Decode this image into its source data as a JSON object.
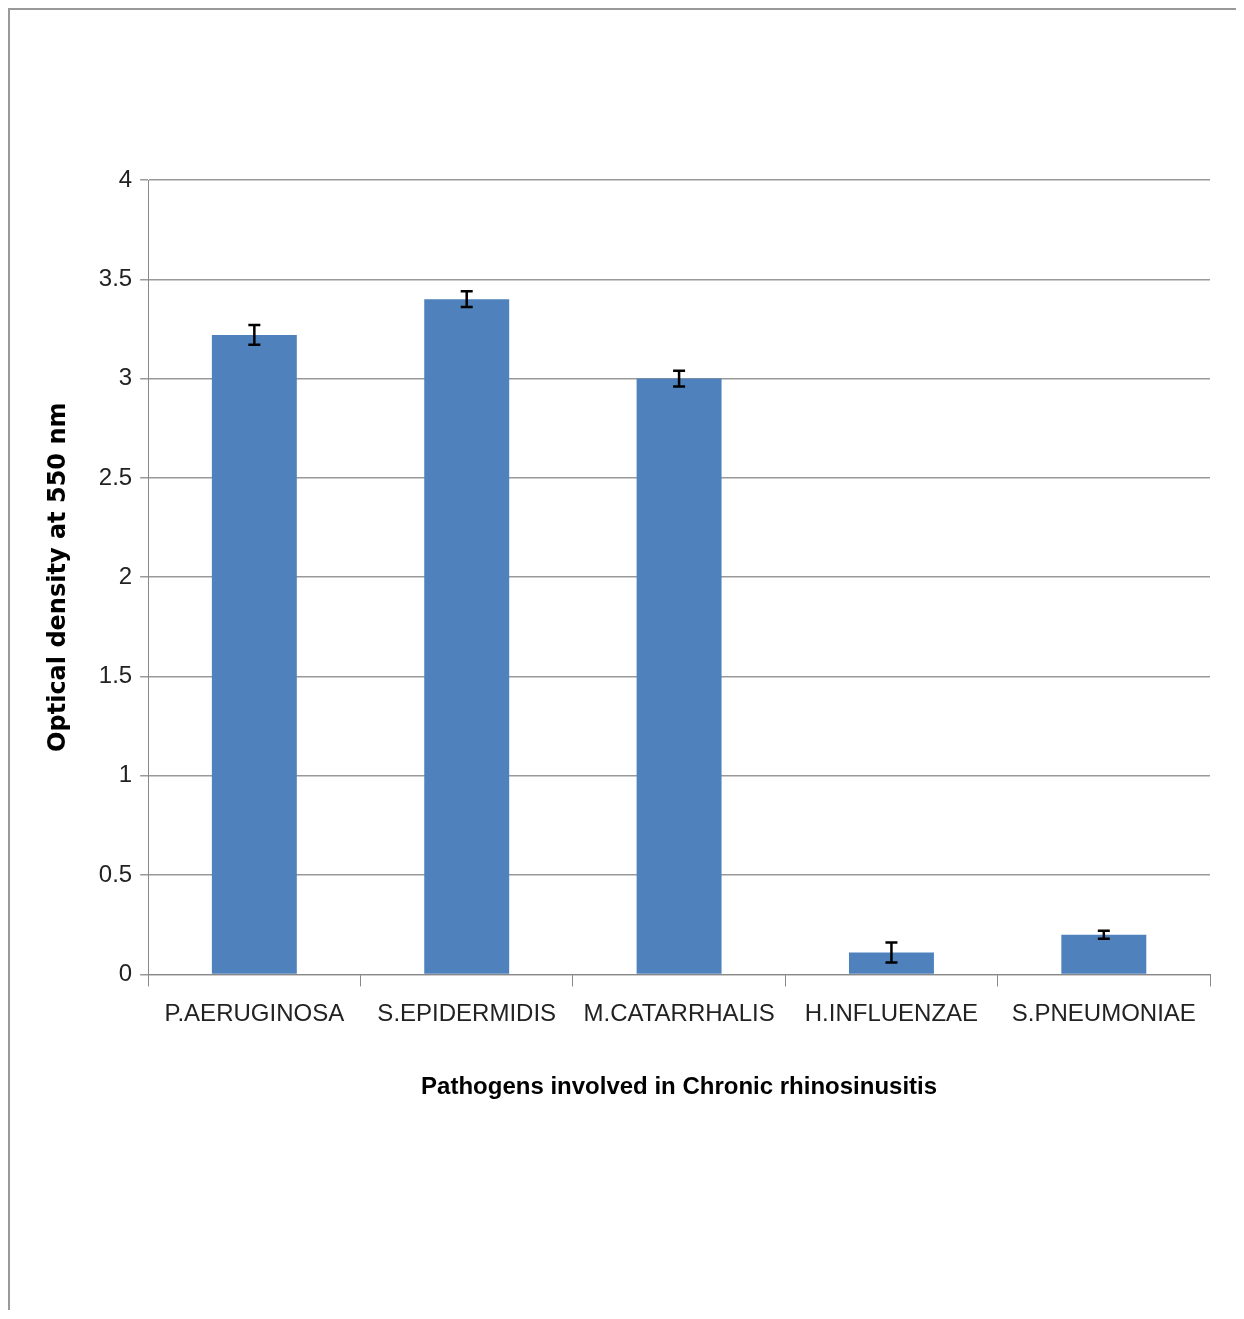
{
  "chart_data": {
    "type": "bar",
    "xlabel": "Pathogens involved in Chronic rhinosinusitis",
    "ylabel": "Optical density at 550 nm",
    "categories": [
      "P.AERUGINOSA",
      "S.EPIDERMIDIS",
      "M.CATARRHALIS",
      "H.INFLUENZAE",
      "S.PNEUMONIAE"
    ],
    "values": [
      3.22,
      3.4,
      3.0,
      0.11,
      0.2
    ],
    "errors": [
      0.05,
      0.04,
      0.04,
      0.05,
      0.02
    ],
    "color": "#4f81bd",
    "ylim": [
      0,
      4
    ],
    "yticks": [
      0,
      0.5,
      1,
      1.5,
      2,
      2.5,
      3,
      3.5,
      4
    ],
    "grid": "y",
    "legend": false
  }
}
